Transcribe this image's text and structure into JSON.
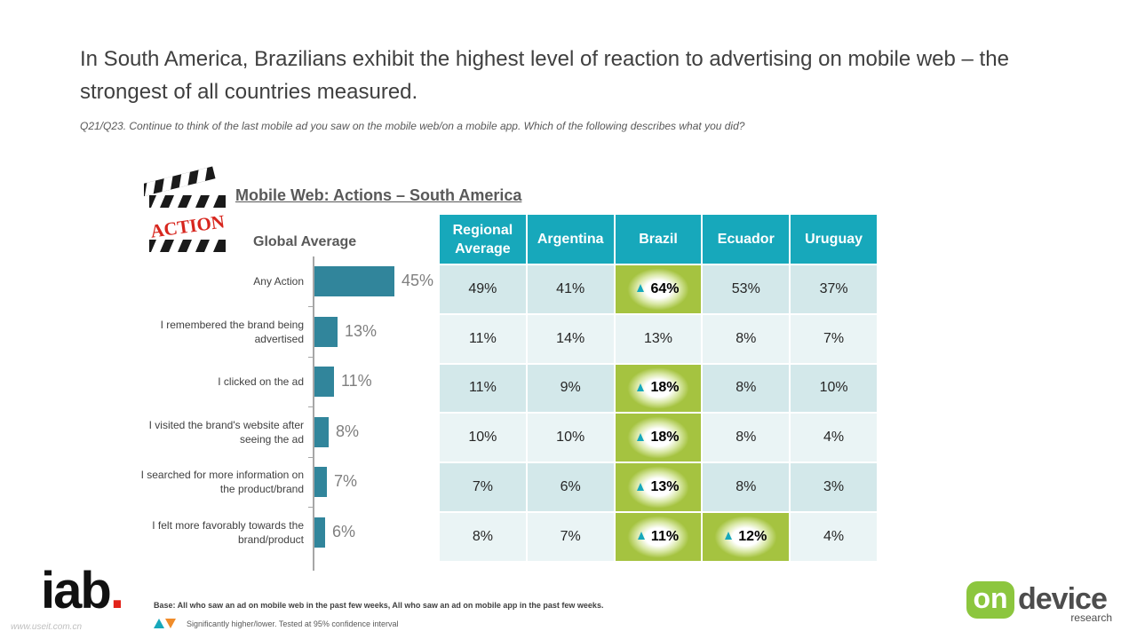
{
  "headline": "In South America, Brazilians exhibit the highest level of reaction to advertising on mobile web – the strongest of all countries measured.",
  "question": "Q21/Q23. Continue to think of the last mobile ad you saw on the mobile web/on a mobile app. Which of the following describes what you did?",
  "action_logo_text": "ACTION",
  "chart_data": [
    {
      "type": "bar",
      "title": "Mobile Web: Actions –  South America",
      "subtitle": "Global Average",
      "orientation": "horizontal",
      "categories": [
        "Any Action",
        "I remembered the brand being advertised",
        "I clicked on the ad",
        "I visited the brand's website after seeing the ad",
        "I searched for more information on the product/brand",
        "I felt more favorably towards the brand/product"
      ],
      "values": [
        45,
        13,
        11,
        8,
        7,
        6
      ],
      "value_labels": [
        "45%",
        "13%",
        "11%",
        "8%",
        "7%",
        "6%"
      ],
      "xlim": [
        0,
        50
      ],
      "bar_color": "#31859b"
    },
    {
      "type": "table",
      "columns": [
        "Regional Average",
        "Argentina",
        "Brazil",
        "Ecuador",
        "Uruguay"
      ],
      "rows": [
        [
          "49%",
          "41%",
          "64%",
          "53%",
          "37%"
        ],
        [
          "11%",
          "14%",
          "13%",
          "8%",
          "7%"
        ],
        [
          "11%",
          "9%",
          "18%",
          "8%",
          "10%"
        ],
        [
          "10%",
          "10%",
          "18%",
          "8%",
          "4%"
        ],
        [
          "7%",
          "6%",
          "13%",
          "8%",
          "3%"
        ],
        [
          "8%",
          "7%",
          "11%",
          "12%",
          "4%"
        ]
      ],
      "significant_higher": [
        [
          0,
          2
        ],
        [
          2,
          2
        ],
        [
          3,
          2
        ],
        [
          4,
          2
        ],
        [
          5,
          2
        ],
        [
          5,
          3
        ]
      ],
      "header_color": "#17a8bb",
      "row_colors": [
        "#d3e8ea",
        "#eaf4f5"
      ]
    }
  ],
  "footer": {
    "base_note": "Base: All who saw an ad on mobile web in the past few weeks, All who saw an ad on mobile app in the past few weeks.",
    "legend_text": "Significantly higher/lower. Tested at 95% confidence interval",
    "iab_logo": "iab",
    "iab_dot": ".",
    "watermark": "www.useit.com.cn",
    "ondevice_on": "on",
    "ondevice_device": "device",
    "ondevice_research": "research"
  },
  "colors": {
    "accent_teal": "#17a8bb",
    "bar_teal": "#31859b",
    "highlight_green": "#a5c340",
    "lower_orange": "#f08c2a",
    "iab_red": "#e2231a",
    "ondevice_green": "#8cc63e"
  }
}
